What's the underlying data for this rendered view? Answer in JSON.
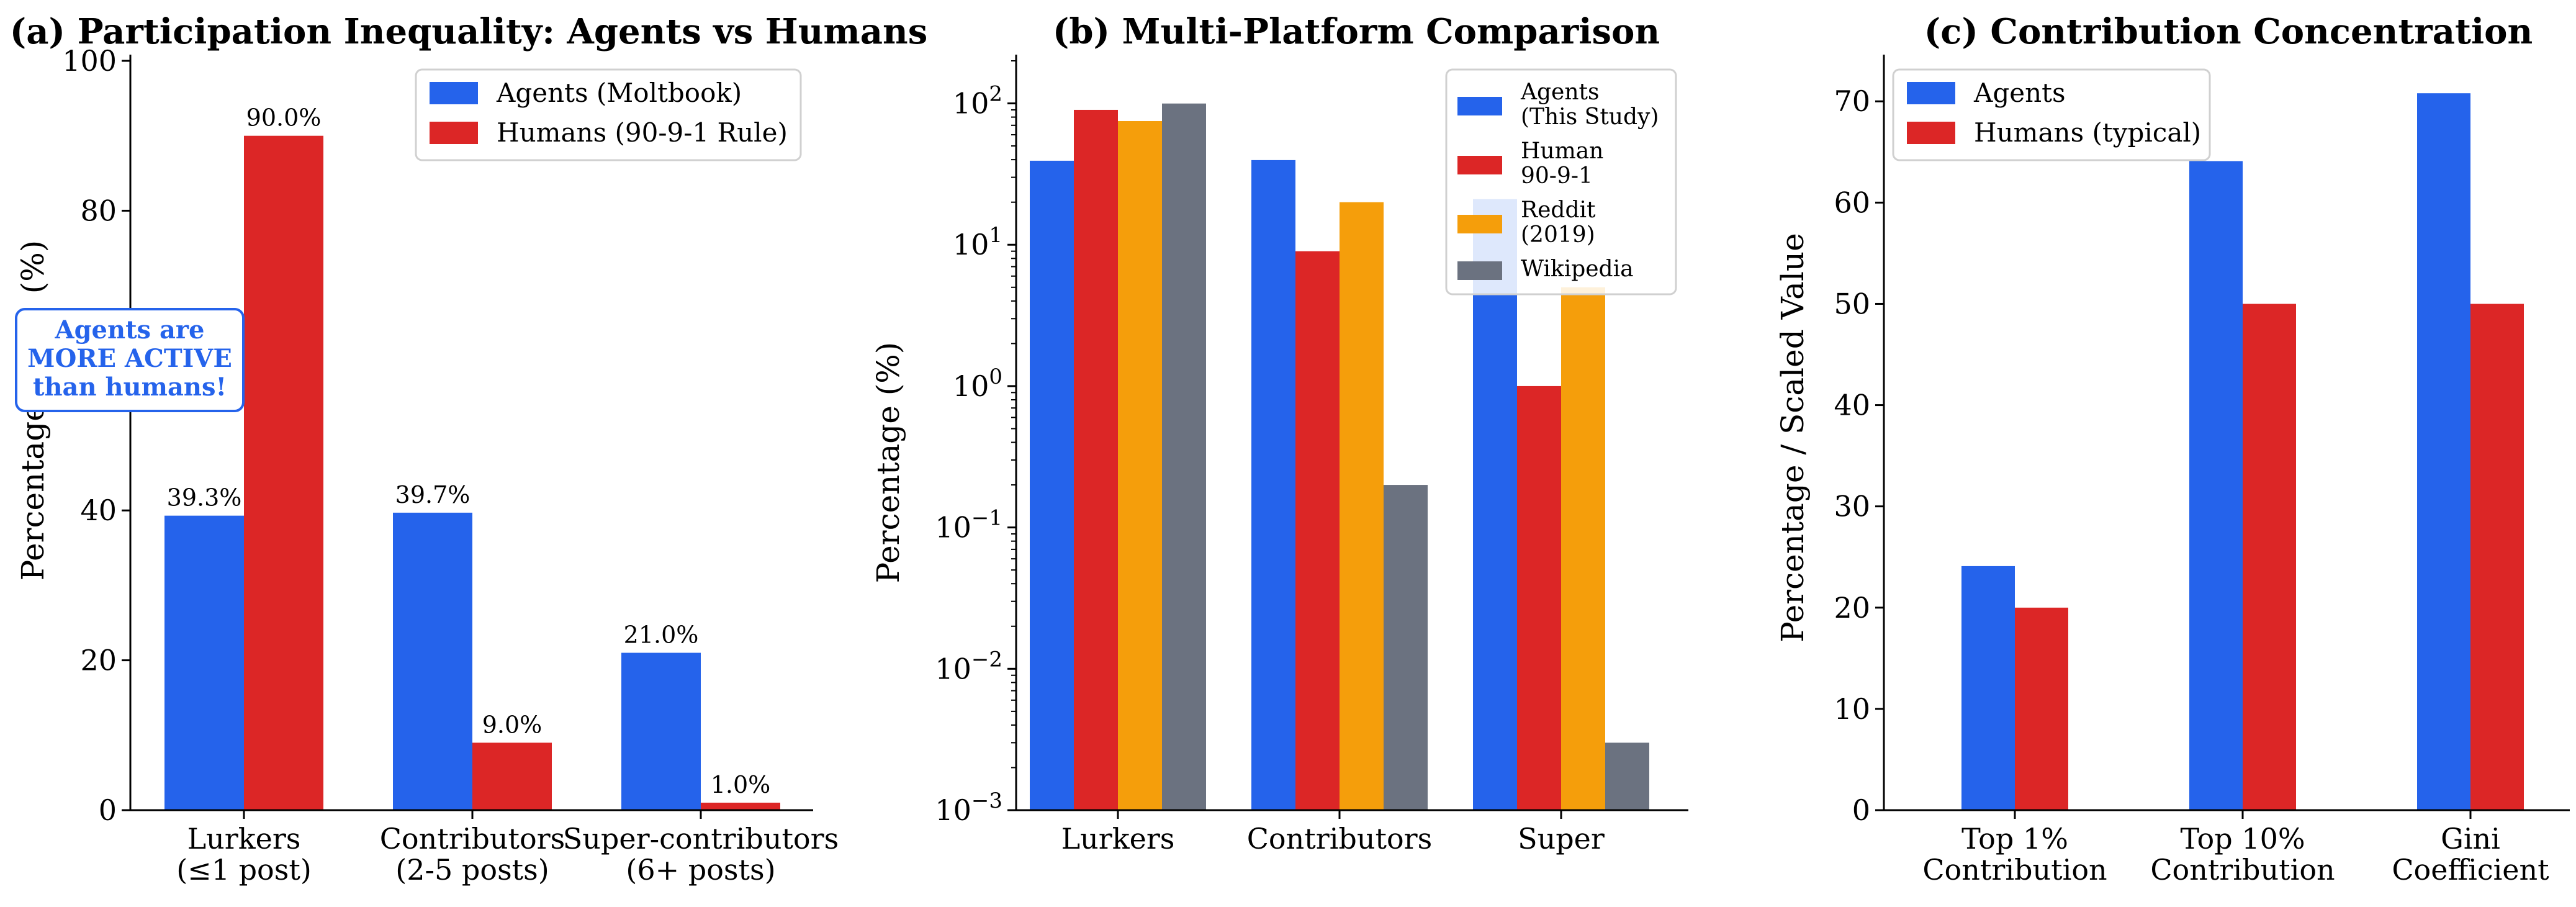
{
  "chart_data": [
    {
      "type": "bar",
      "title": "(a) Participation Inequality: Agents vs Humans",
      "xlabel": "",
      "ylabel": "Percentage of",
      "ylabel_tail": "(%)",
      "categories": [
        [
          "Lurkers",
          "(≤1 post)"
        ],
        [
          "Contributors",
          "(2-5 posts)"
        ],
        [
          "Super-contributors",
          "(6+ posts)"
        ]
      ],
      "ylim": [
        0,
        100
      ],
      "yticks": [
        0,
        20,
        40,
        80,
        100
      ],
      "series": [
        {
          "name": "Agents (Moltbook)",
          "color": "#2563eb",
          "values": [
            39.3,
            39.7,
            21.0
          ],
          "labels": [
            "39.3%",
            "39.7%",
            "21.0%"
          ]
        },
        {
          "name": "Humans (90-9-1 Rule)",
          "color": "#dc2626",
          "values": [
            90.0,
            9.0,
            1.0
          ],
          "labels": [
            "90.0%",
            "9.0%",
            "1.0%"
          ]
        }
      ],
      "legend": "top-right",
      "annotation": [
        "Agents are",
        "MORE ACTIVE",
        "than humans!"
      ]
    },
    {
      "type": "bar",
      "title": "(b) Multi-Platform Comparison",
      "xlabel": "",
      "ylabel": "Percentage (%)",
      "yscale": "log",
      "categories": [
        "Lurkers",
        "Contributors",
        "Super"
      ],
      "ylim": [
        0.001,
        200
      ],
      "yticks": [
        {
          "base": "10",
          "exp": "−3"
        },
        {
          "base": "10",
          "exp": "−2"
        },
        {
          "base": "10",
          "exp": "−1"
        },
        {
          "base": "10",
          "exp": "0"
        },
        {
          "base": "10",
          "exp": "1"
        },
        {
          "base": "10",
          "exp": "2"
        }
      ],
      "series": [
        {
          "name": [
            "Agents",
            "(This Study)"
          ],
          "color": "#2563eb",
          "values": [
            39.3,
            39.7,
            21.0
          ]
        },
        {
          "name": [
            "Human",
            "90-9-1"
          ],
          "color": "#dc2626",
          "values": [
            90.0,
            9.0,
            1.0
          ]
        },
        {
          "name": [
            "Reddit",
            "(2019)"
          ],
          "color": "#f59e0b",
          "values": [
            75,
            20,
            5
          ]
        },
        {
          "name": [
            "Wikipedia"
          ],
          "color": "#6b7280",
          "values": [
            99.8,
            0.2,
            0.003
          ]
        }
      ],
      "legend": "top-right"
    },
    {
      "type": "bar",
      "title": "(c) Contribution Concentration",
      "xlabel": "",
      "ylabel": "Percentage / Scaled Value",
      "categories": [
        [
          "Top 1%",
          "Contribution"
        ],
        [
          "Top 10%",
          "Contribution"
        ],
        [
          "Gini",
          "Coefficient"
        ]
      ],
      "ylim": [
        0,
        74
      ],
      "yticks": [
        0,
        10,
        20,
        30,
        40,
        50,
        60,
        70
      ],
      "series": [
        {
          "name": "Agents",
          "color": "#2563eb",
          "values": [
            24.1,
            64.1,
            70.8
          ]
        },
        {
          "name": "Humans (typical)",
          "color": "#dc2626",
          "values": [
            20,
            50,
            50
          ]
        }
      ],
      "legend": "top-left"
    }
  ]
}
